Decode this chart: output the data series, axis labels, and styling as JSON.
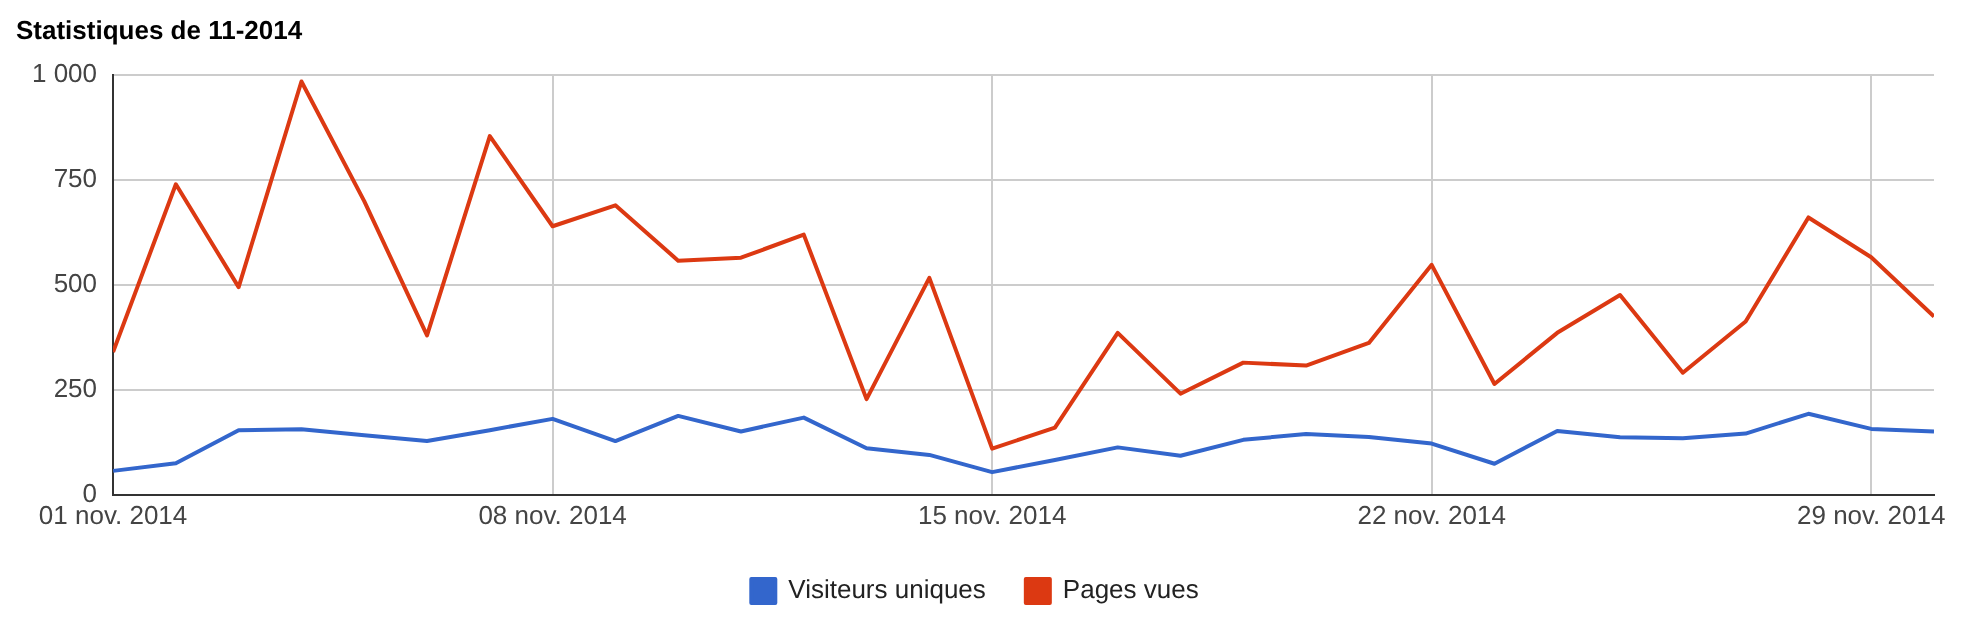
{
  "chart_data": {
    "type": "line",
    "title": "Statistiques de 11-2014",
    "x": [
      "2014-11-01",
      "2014-11-02",
      "2014-11-03",
      "2014-11-04",
      "2014-11-05",
      "2014-11-06",
      "2014-11-07",
      "2014-11-08",
      "2014-11-09",
      "2014-11-10",
      "2014-11-11",
      "2014-11-12",
      "2014-11-13",
      "2014-11-14",
      "2014-11-15",
      "2014-11-16",
      "2014-11-17",
      "2014-11-18",
      "2014-11-19",
      "2014-11-20",
      "2014-11-21",
      "2014-11-22",
      "2014-11-23",
      "2014-11-24",
      "2014-11-25",
      "2014-11-26",
      "2014-11-27",
      "2014-11-28",
      "2014-11-29",
      "2014-11-30"
    ],
    "series": [
      {
        "name": "Visiteurs uniques",
        "color": "#3366cc",
        "values": [
          57,
          75,
          154,
          156,
          142,
          128,
          154,
          181,
          128,
          188,
          151,
          184,
          111,
          95,
          54,
          83,
          113,
          93,
          131,
          145,
          138,
          122,
          74,
          152,
          137,
          135,
          146,
          193,
          157,
          151
        ]
      },
      {
        "name": "Pages vues",
        "color": "#dc3912",
        "values": [
          340,
          740,
          495,
          985,
          700,
          380,
          855,
          640,
          690,
          558,
          565,
          620,
          228,
          517,
          110,
          160,
          386,
          241,
          315,
          308,
          362,
          548,
          264,
          386,
          476,
          291,
          413,
          661,
          566,
          425
        ]
      }
    ],
    "xlim": [
      "2014-11-01",
      "2014-11-30"
    ],
    "xticks": [
      {
        "value": "2014-11-01",
        "label": "01 nov. 2014"
      },
      {
        "value": "2014-11-08",
        "label": "08 nov. 2014"
      },
      {
        "value": "2014-11-15",
        "label": "15 nov. 2014"
      },
      {
        "value": "2014-11-22",
        "label": "22 nov. 2014"
      },
      {
        "value": "2014-11-29",
        "label": "29 nov. 2014"
      }
    ],
    "ylim": [
      0,
      1000
    ],
    "yticks": [
      0,
      250,
      500,
      750,
      {
        "value": 1000,
        "label": "1 000"
      }
    ],
    "grid": true,
    "legend": "bottom",
    "marker": "none",
    "line_style": "solid"
  }
}
